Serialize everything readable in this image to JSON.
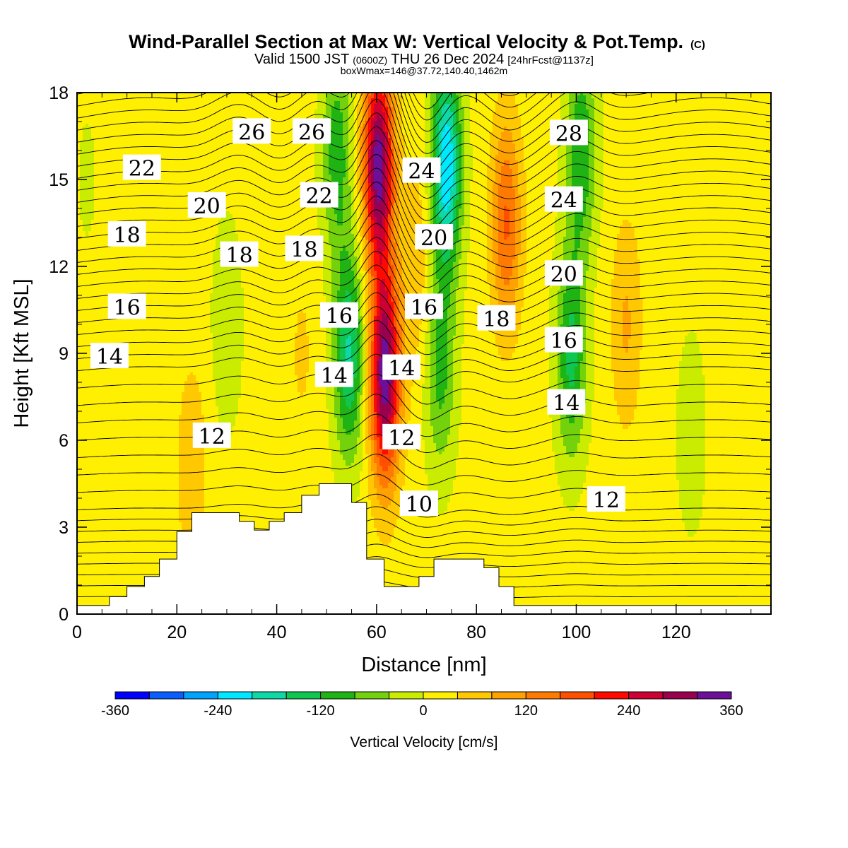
{
  "chart_data": {
    "type": "heatmap",
    "title": "Wind-Parallel Section at Max W: Vertical Velocity & Pot.Temp.",
    "title_mark": "(C)",
    "subtitle_parts": [
      "Valid 1500 JST",
      "(0600Z)",
      "THU 26 Dec 2024",
      "[24hrFcst@1137z]"
    ],
    "info": "boxWmax=146@37.72,140.40,1462m",
    "xlabel": "Distance [nm]",
    "ylabel": "Height [Kft MSL]",
    "xlim": [
      0,
      139
    ],
    "ylim": [
      0,
      18
    ],
    "x_ticks": [
      "0",
      "20",
      "40",
      "60",
      "80",
      "100",
      "120"
    ],
    "y_ticks": [
      "0",
      "3",
      "6",
      "9",
      "12",
      "15",
      "18"
    ],
    "colorbar": {
      "label": "Vertical Velocity [cm/s]",
      "range": [
        -360,
        360
      ],
      "tick_labels": [
        "-360",
        "-240",
        "-120",
        "0",
        "120",
        "240",
        "360"
      ],
      "colors": [
        "#0000ff",
        "#0a5eff",
        "#00a4ff",
        "#00e8ff",
        "#0ed9a6",
        "#0fc651",
        "#1fb414",
        "#74d20c",
        "#c9ec00",
        "#ffef00",
        "#ffc800",
        "#ffa100",
        "#ff7a00",
        "#ff4f00",
        "#fe0a00",
        "#cc0033",
        "#99004d",
        "#6c0f99"
      ]
    },
    "terrain": [
      [
        0,
        0.3
      ],
      [
        6.5,
        0.3
      ],
      [
        6.5,
        0.6
      ],
      [
        10,
        0.6
      ],
      [
        10,
        0.95
      ],
      [
        13.5,
        0.95
      ],
      [
        13.5,
        1.3
      ],
      [
        16.5,
        1.3
      ],
      [
        16.5,
        1.9
      ],
      [
        20,
        1.9
      ],
      [
        20,
        2.85
      ],
      [
        23,
        2.85
      ],
      [
        23,
        3.5
      ],
      [
        32.5,
        3.5
      ],
      [
        32.5,
        3.2
      ],
      [
        35.5,
        3.2
      ],
      [
        35.5,
        2.9
      ],
      [
        38.5,
        2.9
      ],
      [
        38.5,
        3.2
      ],
      [
        41.5,
        3.2
      ],
      [
        41.5,
        3.5
      ],
      [
        45,
        3.5
      ],
      [
        45,
        4.1
      ],
      [
        48.5,
        4.1
      ],
      [
        48.5,
        4.5
      ],
      [
        55,
        4.5
      ],
      [
        55,
        3.85
      ],
      [
        58,
        3.85
      ],
      [
        58,
        1.9
      ],
      [
        61.5,
        1.9
      ],
      [
        61.5,
        0.95
      ],
      [
        68.5,
        0.95
      ],
      [
        68.5,
        1.3
      ],
      [
        71.5,
        1.3
      ],
      [
        71.5,
        1.9
      ],
      [
        81.5,
        1.9
      ],
      [
        81.5,
        1.6
      ],
      [
        84.5,
        1.6
      ],
      [
        84.5,
        0.95
      ],
      [
        87.5,
        0.95
      ],
      [
        87.5,
        0.3
      ],
      [
        139,
        0.3
      ]
    ],
    "w_field": {
      "units": "cm/s",
      "background": 15,
      "features": [
        {
          "x": 61.7,
          "h": 8.2,
          "w": 330
        },
        {
          "x": 60.4,
          "h": 15.5,
          "w": 330
        },
        {
          "x": 74,
          "h": 15.5,
          "w": -250
        },
        {
          "x": 72.8,
          "h": 8.5,
          "w": -110
        },
        {
          "x": 54.5,
          "h": 9,
          "w": -180
        },
        {
          "x": 52,
          "h": 16,
          "w": -120
        },
        {
          "x": 68,
          "h": 12,
          "w": 60
        },
        {
          "x": 86,
          "h": 13.5,
          "w": 150
        },
        {
          "x": 99,
          "h": 9,
          "w": -150
        },
        {
          "x": 101,
          "h": 16,
          "w": -130
        },
        {
          "x": 110,
          "h": 10,
          "w": 70
        },
        {
          "x": 123,
          "h": 6.2,
          "w": -40
        },
        {
          "x": 30,
          "h": 10,
          "w": -50
        },
        {
          "x": 23,
          "h": 5,
          "w": 60
        },
        {
          "x": 2,
          "h": 15,
          "w": -20
        },
        {
          "x": 45,
          "h": 9,
          "w": 30
        }
      ]
    },
    "theta_labels": [
      {
        "text": "26",
        "x": 35,
        "h": 16.65
      },
      {
        "text": "26",
        "x": 47,
        "h": 16.65
      },
      {
        "text": "22",
        "x": 13,
        "h": 15.4
      },
      {
        "text": "20",
        "x": 26,
        "h": 14.1
      },
      {
        "text": "22",
        "x": 48.5,
        "h": 14.45
      },
      {
        "text": "24",
        "x": 69,
        "h": 15.3
      },
      {
        "text": "28",
        "x": 98.5,
        "h": 16.6
      },
      {
        "text": "24",
        "x": 97.5,
        "h": 14.3
      },
      {
        "text": "18",
        "x": 10,
        "h": 13.1
      },
      {
        "text": "18",
        "x": 32.5,
        "h": 12.4
      },
      {
        "text": "18",
        "x": 45.5,
        "h": 12.6
      },
      {
        "text": "20",
        "x": 71.5,
        "h": 13.0
      },
      {
        "text": "20",
        "x": 97.5,
        "h": 11.75
      },
      {
        "text": "16",
        "x": 10,
        "h": 10.6
      },
      {
        "text": "16",
        "x": 52.5,
        "h": 10.3
      },
      {
        "text": "16",
        "x": 69.5,
        "h": 10.6
      },
      {
        "text": "18",
        "x": 84,
        "h": 10.2
      },
      {
        "text": "16",
        "x": 97.5,
        "h": 9.45
      },
      {
        "text": "14",
        "x": 6.5,
        "h": 8.9
      },
      {
        "text": "14",
        "x": 51.5,
        "h": 8.25
      },
      {
        "text": "14",
        "x": 65,
        "h": 8.5
      },
      {
        "text": "14",
        "x": 98,
        "h": 7.3
      },
      {
        "text": "12",
        "x": 27,
        "h": 6.15
      },
      {
        "text": "12",
        "x": 65,
        "h": 6.1
      },
      {
        "text": "10",
        "x": 68.5,
        "h": 3.8
      },
      {
        "text": "12",
        "x": 106,
        "h": 3.95
      }
    ]
  }
}
